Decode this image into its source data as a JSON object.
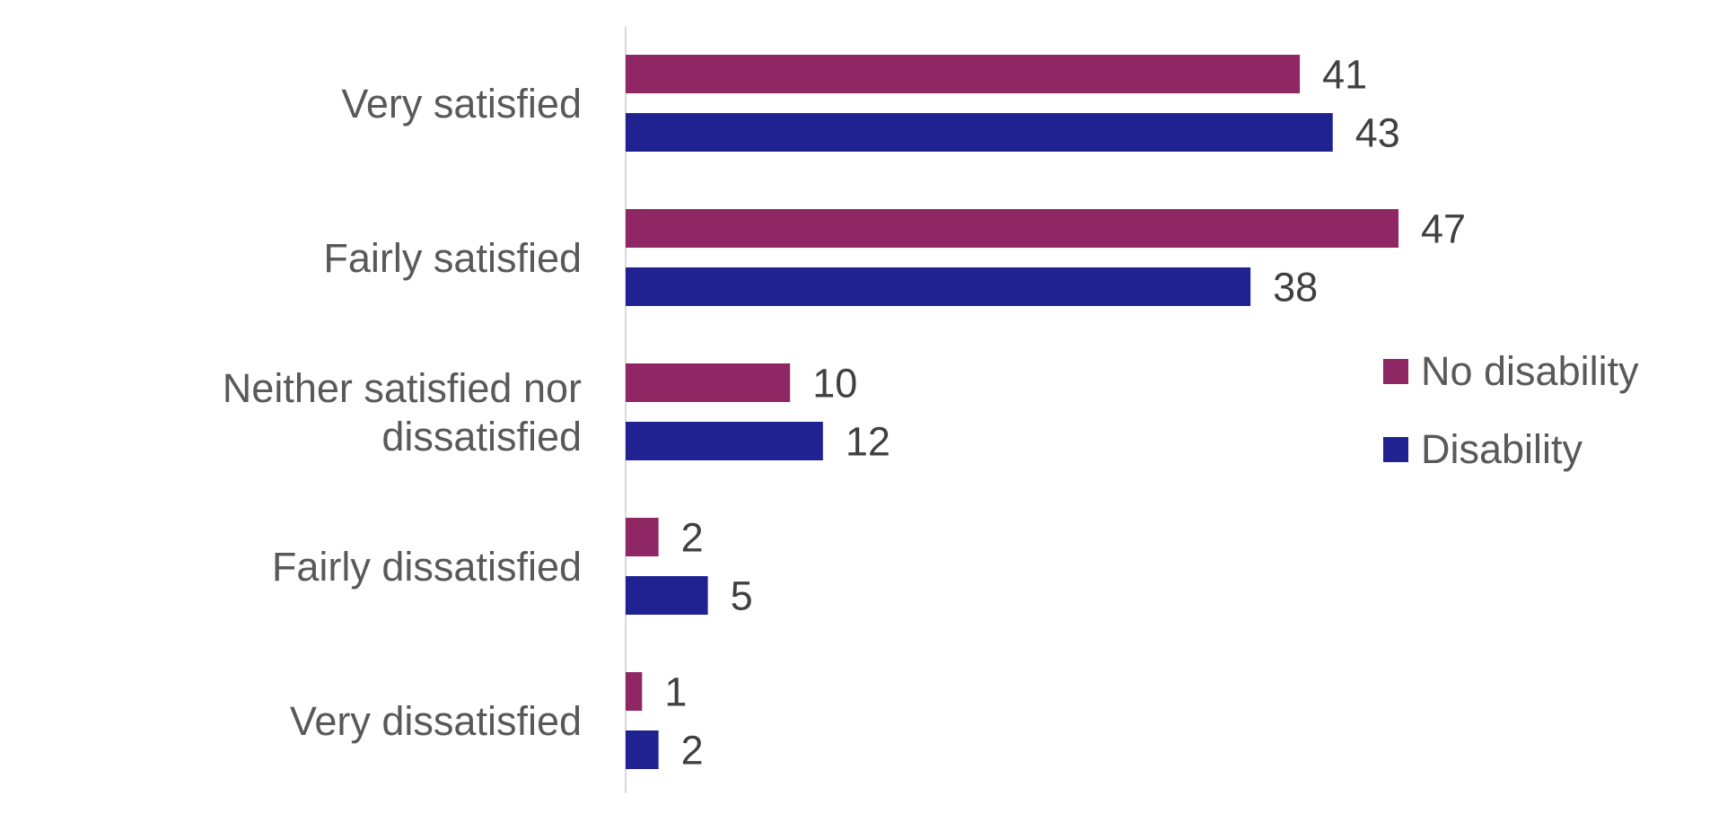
{
  "chart_data": {
    "type": "bar",
    "orientation": "horizontal",
    "title": "",
    "xlabel": "",
    "ylabel": "",
    "xlim": [
      0,
      50
    ],
    "grid": false,
    "legend_position": "right",
    "categories": [
      [
        "Very satisfied"
      ],
      [
        "Fairly satisfied"
      ],
      [
        "Neither satisfied nor",
        "dissatisfied"
      ],
      [
        "Fairly dissatisfied"
      ],
      [
        "Very dissatisfied"
      ]
    ],
    "series": [
      {
        "name": "No disability",
        "color": "#8F2765",
        "values": [
          41,
          47,
          10,
          2,
          1
        ]
      },
      {
        "name": "Disability",
        "color": "#212292",
        "values": [
          43,
          38,
          12,
          5,
          2
        ]
      }
    ]
  }
}
